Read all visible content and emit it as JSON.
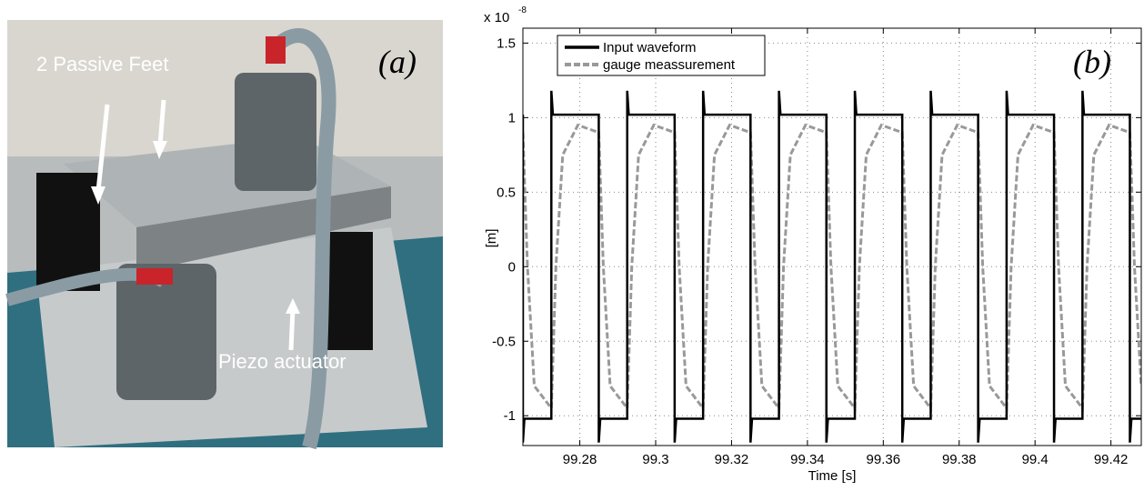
{
  "photo": {
    "panel_label": "(a)",
    "annotations": [
      "2 Passive Feet",
      "Piezo actuator"
    ]
  },
  "chart_data": {
    "type": "line",
    "panel_label": "(b)",
    "axis_multiplier": {
      "base": "x 10",
      "exponent": "-8"
    },
    "xlabel": "Time [s]",
    "ylabel": "[m]",
    "xlim": [
      99.265,
      99.428
    ],
    "xticks": [
      99.28,
      99.3,
      99.32,
      99.34,
      99.36,
      99.38,
      99.4,
      99.42
    ],
    "ylim": [
      -1.2,
      1.6
    ],
    "yticks": [
      -1,
      -0.5,
      0,
      0.5,
      1,
      1.5
    ],
    "grid": true,
    "legend": "upper left",
    "series": [
      {
        "name": "Input waveform",
        "color": "#000000",
        "style": "solid",
        "x": [
          99.265,
          99.265,
          99.2654,
          99.2725,
          99.2725,
          99.2729,
          99.285,
          99.285,
          99.2854,
          99.2925,
          99.2925,
          99.2929,
          99.305,
          99.305,
          99.3054,
          99.3125,
          99.3125,
          99.3129,
          99.325,
          99.325,
          99.3254,
          99.3325,
          99.3325,
          99.3329,
          99.345,
          99.345,
          99.3454,
          99.3525,
          99.3525,
          99.3529,
          99.365,
          99.365,
          99.3654,
          99.3725,
          99.3725,
          99.3729,
          99.385,
          99.385,
          99.3854,
          99.3925,
          99.3925,
          99.3929,
          99.405,
          99.405,
          99.4054,
          99.4125,
          99.4125,
          99.4129,
          99.425,
          99.425,
          99.4254,
          99.428
        ],
        "values": [
          1.02,
          -1.18,
          -1.02,
          -1.02,
          1.18,
          1.02,
          1.02,
          -1.18,
          -1.02,
          -1.02,
          1.18,
          1.02,
          1.02,
          -1.18,
          -1.02,
          -1.02,
          1.18,
          1.02,
          1.02,
          -1.18,
          -1.02,
          -1.02,
          1.18,
          1.02,
          1.02,
          -1.18,
          -1.02,
          -1.02,
          1.18,
          1.02,
          1.02,
          -1.18,
          -1.02,
          -1.02,
          1.18,
          1.02,
          1.02,
          -1.18,
          -1.02,
          -1.02,
          1.18,
          1.02,
          1.02,
          -1.18,
          -1.02,
          -1.02,
          1.18,
          1.02,
          1.02,
          -1.18,
          -1.02,
          -1.02
        ]
      },
      {
        "name": "gauge meassurement",
        "color": "#999999",
        "style": "dashed",
        "x": [
          99.265,
          99.2662,
          99.268,
          99.2725,
          99.2737,
          99.2755,
          99.2795,
          99.285,
          99.2862,
          99.288,
          99.2925,
          99.2937,
          99.2955,
          99.2995,
          99.305,
          99.3062,
          99.308,
          99.3125,
          99.3137,
          99.3155,
          99.3195,
          99.325,
          99.3262,
          99.328,
          99.3325,
          99.3337,
          99.3355,
          99.3395,
          99.345,
          99.3462,
          99.348,
          99.3525,
          99.3537,
          99.3555,
          99.3595,
          99.365,
          99.3662,
          99.368,
          99.3725,
          99.3737,
          99.3755,
          99.3795,
          99.385,
          99.3862,
          99.388,
          99.3925,
          99.3937,
          99.3955,
          99.3995,
          99.405,
          99.4062,
          99.408,
          99.4125,
          99.4137,
          99.4155,
          99.4195,
          99.425,
          99.4262,
          99.428
        ],
        "values": [
          0.9,
          0,
          -0.8,
          -0.95,
          0,
          0.75,
          0.95,
          0.9,
          0,
          -0.8,
          -0.95,
          0,
          0.75,
          0.95,
          0.9,
          0,
          -0.8,
          -0.95,
          0,
          0.75,
          0.95,
          0.9,
          0,
          -0.8,
          -0.95,
          0,
          0.75,
          0.95,
          0.9,
          0,
          -0.8,
          -0.95,
          0,
          0.75,
          0.95,
          0.9,
          0,
          -0.8,
          -0.95,
          0,
          0.75,
          0.95,
          0.9,
          0,
          -0.8,
          -0.95,
          0,
          0.75,
          0.95,
          0.9,
          0,
          -0.8,
          -0.95,
          0,
          0.75,
          0.95,
          0.9,
          0,
          -0.8
        ]
      }
    ]
  }
}
